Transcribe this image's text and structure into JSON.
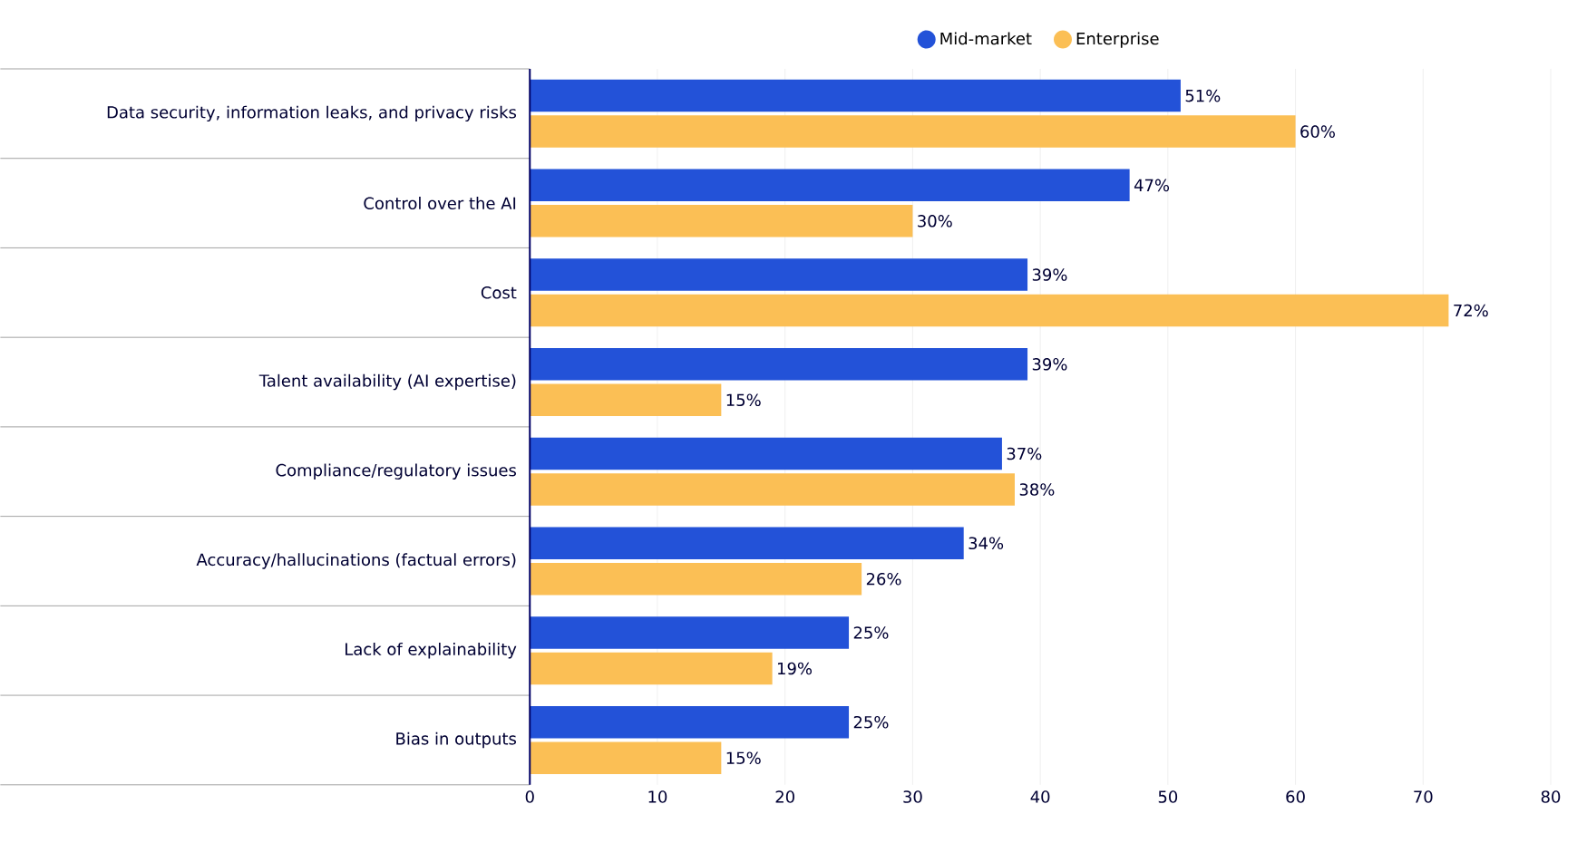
{
  "chart_data": {
    "type": "bar",
    "orientation": "horizontal",
    "categories": [
      "Data security, information leaks, and privacy risks",
      "Control over the AI",
      "Cost",
      "Talent availability (AI expertise)",
      "Compliance/regulatory issues",
      "Accuracy/hallucinations (factual errors)",
      "Lack of explainability",
      "Bias in outputs"
    ],
    "series": [
      {
        "name": "Mid-market",
        "color": "#2352d8",
        "values": [
          51,
          47,
          39,
          39,
          37,
          34,
          25,
          25
        ],
        "value_labels": [
          "51%",
          "47%",
          "39%",
          "39%",
          "37%",
          "34%",
          "25%",
          "25%"
        ]
      },
      {
        "name": "Enterprise",
        "color": "#fbbf55",
        "values": [
          60,
          30,
          72,
          15,
          38,
          26,
          19,
          15
        ],
        "value_labels": [
          "60%",
          "30%",
          "72%",
          "15%",
          "38%",
          "26%",
          "19%",
          "15%"
        ]
      }
    ],
    "xlim": [
      0,
      80
    ],
    "xticks": [
      0,
      10,
      20,
      30,
      40,
      50,
      60,
      70,
      80
    ],
    "grid": "x",
    "legend": "top"
  }
}
